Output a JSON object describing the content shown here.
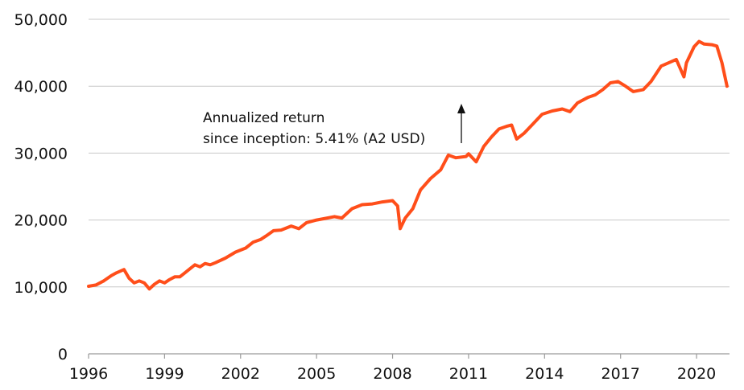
{
  "chart_data": {
    "type": "line",
    "title": "",
    "xlabel": "",
    "ylabel": "",
    "xlim": [
      1996.0,
      2021.3
    ],
    "ylim": [
      0,
      50000
    ],
    "grid": "horizontal",
    "y_ticks": [
      0,
      10000,
      20000,
      30000,
      40000,
      50000
    ],
    "y_tick_labels": [
      "0",
      "10,000",
      "20,000",
      "30,000",
      "40,000",
      "50,000"
    ],
    "x_ticks": [
      1996,
      1999,
      2002,
      2005,
      2008,
      2011,
      2014,
      2017,
      2020
    ],
    "x_tick_labels": [
      "1996",
      "1999",
      "2002",
      "2005",
      "2008",
      "2011",
      "2014",
      "2017",
      "2020"
    ],
    "series": [
      {
        "color": "#FF4E1A",
        "x": [
          1996.0,
          1996.3,
          1996.6,
          1996.9,
          1997.1,
          1997.4,
          1997.6,
          1997.8,
          1998.0,
          1998.2,
          1998.4,
          1998.6,
          1998.8,
          1999.0,
          1999.2,
          1999.4,
          1999.6,
          1999.8,
          2000.0,
          2000.2,
          2000.4,
          2000.6,
          2000.8,
          2001.0,
          2001.4,
          2001.8,
          2002.2,
          2002.5,
          2002.8,
          2003.0,
          2003.3,
          2003.6,
          2004.0,
          2004.3,
          2004.6,
          2005.0,
          2005.3,
          2005.7,
          2006.0,
          2006.4,
          2006.8,
          2007.2,
          2007.6,
          2008.0,
          2008.2,
          2008.3,
          2008.5,
          2008.8,
          2009.1,
          2009.5,
          2009.9,
          2010.2,
          2010.5,
          2010.9,
          2011.0,
          2011.3,
          2011.6,
          2011.9,
          2012.2,
          2012.5,
          2012.7,
          2012.9,
          2013.2,
          2013.5,
          2013.9,
          2014.3,
          2014.7,
          2015.0,
          2015.3,
          2015.7,
          2016.0,
          2016.3,
          2016.6,
          2016.9,
          2017.2,
          2017.5,
          2017.9,
          2018.2,
          2018.6,
          2018.9,
          2019.2,
          2019.5,
          2019.6,
          2019.9,
          2020.1,
          2020.3,
          2020.6,
          2020.8,
          2021.0,
          2021.2
        ],
        "y": [
          10100,
          10300,
          10900,
          11700,
          12100,
          12600,
          11300,
          10600,
          10900,
          10600,
          9700,
          10400,
          10900,
          10600,
          11100,
          11500,
          11500,
          12100,
          12700,
          13300,
          13000,
          13500,
          13300,
          13600,
          14300,
          15200,
          15800,
          16700,
          17100,
          17600,
          18400,
          18500,
          19100,
          18700,
          19600,
          20000,
          20200,
          20500,
          20300,
          21700,
          22300,
          22400,
          22700,
          22900,
          22100,
          18700,
          20300,
          21700,
          24500,
          26200,
          27500,
          29700,
          29300,
          29500,
          29900,
          28700,
          31000,
          32400,
          33600,
          34000,
          34200,
          32100,
          33000,
          34200,
          35800,
          36300,
          36600,
          36200,
          37500,
          38300,
          38700,
          39500,
          40500,
          40700,
          40000,
          39200,
          39500,
          40700,
          43000,
          43500,
          44000,
          41400,
          43500,
          45900,
          46700,
          46300,
          46200,
          46000,
          43500,
          40000
        ]
      }
    ],
    "annotations": {
      "text_line1": "Annualized return",
      "text_line2": "since inception: 5.41% (A2 USD)",
      "arrow": "up"
    }
  }
}
